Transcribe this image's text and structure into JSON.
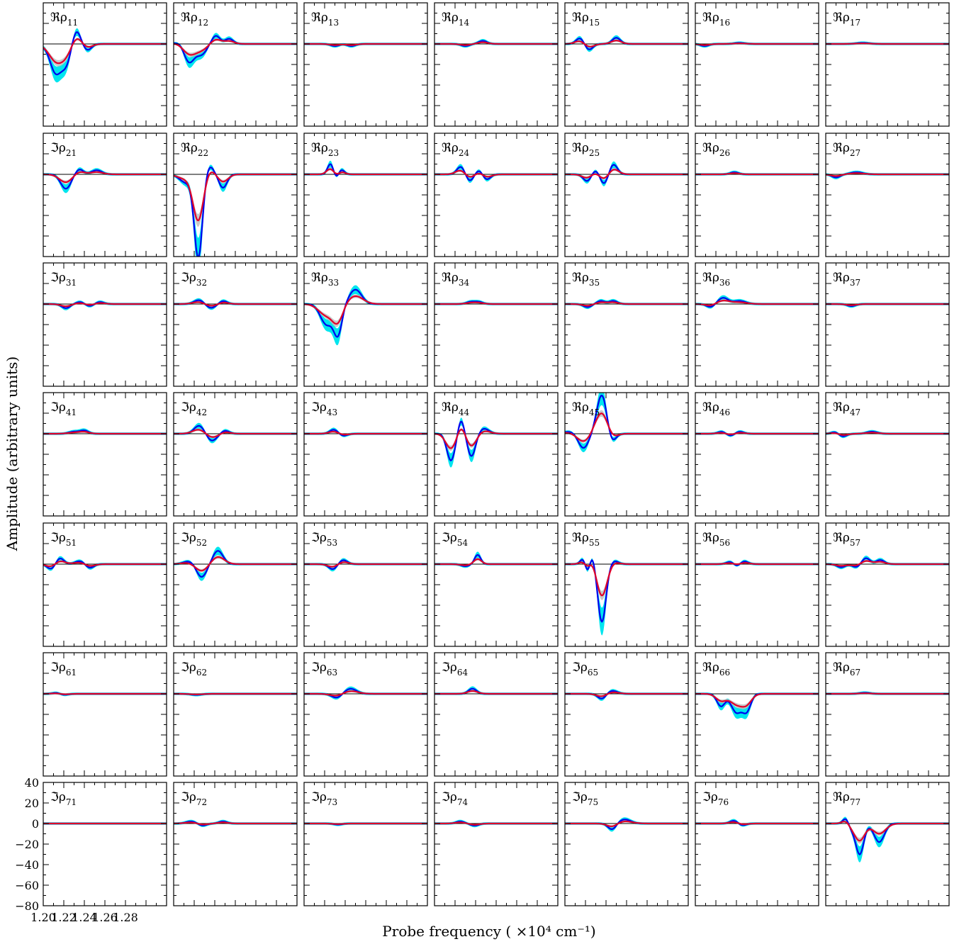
{
  "chart_data": {
    "type": "line",
    "layout": "7x7 grid of small multiples (shared axes)",
    "xlabel": "Probe frequency ( ×10⁴ cm⁻¹)",
    "ylabel": "Amplitude (arbitrary units)",
    "xlim": [
      1.2,
      1.32
    ],
    "ylim": [
      -80,
      40
    ],
    "x_tick_labels": [
      "1.20",
      "1.22",
      "1.24",
      "1.26",
      "1.28"
    ],
    "y_tick_labels": [
      "40",
      "20",
      "0",
      "−20",
      "−40",
      "−60",
      "−80"
    ],
    "colors": {
      "band": "#00e5ee",
      "blue": "#0000ee",
      "red": "#e0002a",
      "grey": "#c0c0c0",
      "zero": "#000000"
    },
    "panels": [
      {
        "row": 1,
        "col": 1,
        "label": "ℜρ",
        "sub": "11",
        "features": [
          [
            1.212,
            -25,
            0.005
          ],
          [
            1.222,
            -20,
            0.005
          ],
          [
            1.232,
            14,
            0.004
          ],
          [
            1.243,
            -6,
            0.004
          ],
          [
            1.205,
            -3,
            0.006
          ]
        ]
      },
      {
        "row": 1,
        "col": 2,
        "label": "ℜρ",
        "sub": "12",
        "features": [
          [
            1.215,
            -18,
            0.005
          ],
          [
            1.227,
            -10,
            0.005
          ],
          [
            1.241,
            8,
            0.004
          ],
          [
            1.254,
            5,
            0.004
          ],
          [
            1.207,
            2,
            0.005
          ]
        ]
      },
      {
        "row": 1,
        "col": 3,
        "label": "ℜρ",
        "sub": "13",
        "features": [
          [
            1.23,
            -2,
            0.004
          ],
          [
            1.246,
            -2,
            0.004
          ]
        ]
      },
      {
        "row": 1,
        "col": 4,
        "label": "ℜρ",
        "sub": "14",
        "features": [
          [
            1.23,
            -2,
            0.004
          ],
          [
            1.247,
            3,
            0.004
          ]
        ]
      },
      {
        "row": 1,
        "col": 5,
        "label": "ℜρ",
        "sub": "15",
        "features": [
          [
            1.215,
            6,
            0.004
          ],
          [
            1.223,
            -6,
            0.004
          ],
          [
            1.25,
            6,
            0.004
          ]
        ]
      },
      {
        "row": 1,
        "col": 6,
        "label": "ℜρ",
        "sub": "16",
        "features": [
          [
            1.209,
            -2,
            0.004
          ],
          [
            1.243,
            1,
            0.005
          ]
        ]
      },
      {
        "row": 1,
        "col": 7,
        "label": "ℜρ",
        "sub": "17",
        "features": [
          [
            1.236,
            1,
            0.006
          ]
        ]
      },
      {
        "row": 2,
        "col": 1,
        "label": "ℑρ",
        "sub": "21",
        "features": [
          [
            1.222,
            -14,
            0.005
          ],
          [
            1.235,
            5,
            0.004
          ],
          [
            1.252,
            4,
            0.005
          ]
        ]
      },
      {
        "row": 2,
        "col": 2,
        "label": "ℜρ",
        "sub": "22",
        "features": [
          [
            1.212,
            -8,
            0.006
          ],
          [
            1.224,
            -80,
            0.004
          ],
          [
            1.235,
            8,
            0.004
          ],
          [
            1.248,
            -13,
            0.004
          ]
        ]
      },
      {
        "row": 2,
        "col": 3,
        "label": "ℜρ",
        "sub": "23",
        "features": [
          [
            1.226,
            11,
            0.003
          ],
          [
            1.231,
            -5,
            0.003
          ],
          [
            1.236,
            5,
            0.003
          ]
        ]
      },
      {
        "row": 2,
        "col": 4,
        "label": "ℜρ",
        "sub": "24",
        "features": [
          [
            1.226,
            8,
            0.004
          ],
          [
            1.234,
            -7,
            0.004
          ],
          [
            1.244,
            5,
            0.004
          ],
          [
            1.25,
            -6,
            0.004
          ]
        ]
      },
      {
        "row": 2,
        "col": 5,
        "label": "ℜρ",
        "sub": "25",
        "features": [
          [
            1.222,
            -7,
            0.004
          ],
          [
            1.23,
            5,
            0.004
          ],
          [
            1.238,
            -10,
            0.004
          ],
          [
            1.247,
            10,
            0.004
          ]
        ]
      },
      {
        "row": 2,
        "col": 6,
        "label": "ℜρ",
        "sub": "26",
        "features": [
          [
            1.238,
            2,
            0.004
          ]
        ]
      },
      {
        "row": 2,
        "col": 7,
        "label": "ℜρ",
        "sub": "27",
        "features": [
          [
            1.21,
            -3,
            0.004
          ],
          [
            1.23,
            2,
            0.006
          ]
        ]
      },
      {
        "row": 3,
        "col": 1,
        "label": "ℑρ",
        "sub": "31",
        "features": [
          [
            1.222,
            -4,
            0.004
          ],
          [
            1.236,
            2,
            0.004
          ],
          [
            1.245,
            -2,
            0.004
          ],
          [
            1.255,
            2,
            0.004
          ]
        ]
      },
      {
        "row": 3,
        "col": 2,
        "label": "ℑρ",
        "sub": "32",
        "features": [
          [
            1.225,
            4,
            0.005
          ],
          [
            1.236,
            -4,
            0.005
          ],
          [
            1.248,
            3,
            0.004
          ]
        ]
      },
      {
        "row": 3,
        "col": 3,
        "label": "ℜρ",
        "sub": "33",
        "features": [
          [
            1.222,
            -20,
            0.006
          ],
          [
            1.233,
            -28,
            0.004
          ],
          [
            1.25,
            14,
            0.006
          ]
        ]
      },
      {
        "row": 3,
        "col": 4,
        "label": "ℜρ",
        "sub": "34",
        "features": [
          [
            1.235,
            2,
            0.004
          ],
          [
            1.243,
            2,
            0.004
          ]
        ]
      },
      {
        "row": 3,
        "col": 5,
        "label": "ℜρ",
        "sub": "35",
        "features": [
          [
            1.222,
            -3,
            0.004
          ],
          [
            1.235,
            3,
            0.004
          ],
          [
            1.247,
            3,
            0.004
          ]
        ]
      },
      {
        "row": 3,
        "col": 6,
        "label": "ℜρ",
        "sub": "36",
        "features": [
          [
            1.215,
            -3,
            0.004
          ],
          [
            1.227,
            6,
            0.005
          ],
          [
            1.243,
            3,
            0.006
          ]
        ]
      },
      {
        "row": 3,
        "col": 7,
        "label": "ℜρ",
        "sub": "37",
        "features": [
          [
            1.225,
            -2,
            0.004
          ]
        ]
      },
      {
        "row": 4,
        "col": 1,
        "label": "ℑρ",
        "sub": "41",
        "features": [
          [
            1.23,
            2,
            0.005
          ],
          [
            1.24,
            3,
            0.004
          ]
        ]
      },
      {
        "row": 4,
        "col": 2,
        "label": "ℑρ",
        "sub": "42",
        "features": [
          [
            1.225,
            8,
            0.005
          ],
          [
            1.237,
            -7,
            0.005
          ],
          [
            1.25,
            3,
            0.004
          ]
        ]
      },
      {
        "row": 4,
        "col": 3,
        "label": "ℑρ",
        "sub": "43",
        "features": [
          [
            1.229,
            4,
            0.004
          ],
          [
            1.238,
            -2,
            0.004
          ]
        ]
      },
      {
        "row": 4,
        "col": 4,
        "label": "ℜρ",
        "sub": "44",
        "features": [
          [
            1.216,
            -26,
            0.004
          ],
          [
            1.226,
            14,
            0.003
          ],
          [
            1.236,
            -22,
            0.004
          ],
          [
            1.248,
            5,
            0.005
          ]
        ]
      },
      {
        "row": 4,
        "col": 5,
        "label": "ℜρ",
        "sub": "45",
        "features": [
          [
            1.205,
            2,
            0.006
          ],
          [
            1.218,
            -14,
            0.005
          ],
          [
            1.236,
            38,
            0.005
          ],
          [
            1.245,
            -10,
            0.004
          ]
        ]
      },
      {
        "row": 4,
        "col": 6,
        "label": "ℜρ",
        "sub": "46",
        "features": [
          [
            1.226,
            2,
            0.004
          ],
          [
            1.234,
            -2,
            0.004
          ],
          [
            1.243,
            2,
            0.004
          ]
        ]
      },
      {
        "row": 4,
        "col": 7,
        "label": "ℜρ",
        "sub": "47",
        "features": [
          [
            1.21,
            2,
            0.004
          ],
          [
            1.216,
            -3,
            0.004
          ],
          [
            1.245,
            2,
            0.005
          ]
        ]
      },
      {
        "row": 5,
        "col": 1,
        "label": "ℑρ",
        "sub": "51",
        "features": [
          [
            1.208,
            -5,
            0.004
          ],
          [
            1.216,
            6,
            0.004
          ],
          [
            1.236,
            3,
            0.005
          ],
          [
            1.245,
            -4,
            0.004
          ]
        ]
      },
      {
        "row": 5,
        "col": 2,
        "label": "ℑρ",
        "sub": "52",
        "features": [
          [
            1.216,
            3,
            0.006
          ],
          [
            1.227,
            -13,
            0.005
          ],
          [
            1.243,
            13,
            0.005
          ]
        ]
      },
      {
        "row": 5,
        "col": 3,
        "label": "ℑρ",
        "sub": "53",
        "features": [
          [
            1.228,
            -5,
            0.004
          ],
          [
            1.238,
            4,
            0.004
          ]
        ]
      },
      {
        "row": 5,
        "col": 4,
        "label": "ℑρ",
        "sub": "54",
        "features": [
          [
            1.23,
            -2,
            0.004
          ],
          [
            1.242,
            9,
            0.003
          ]
        ]
      },
      {
        "row": 5,
        "col": 5,
        "label": "ℜρ",
        "sub": "55",
        "features": [
          [
            1.219,
            10,
            0.003
          ],
          [
            1.222,
            -16,
            0.003
          ],
          [
            1.226,
            12,
            0.003
          ],
          [
            1.236,
            -56,
            0.004
          ],
          [
            1.248,
            3,
            0.004
          ]
        ]
      },
      {
        "row": 5,
        "col": 6,
        "label": "ℜρ",
        "sub": "56",
        "features": [
          [
            1.235,
            3,
            0.004
          ],
          [
            1.24,
            -3,
            0.004
          ],
          [
            1.247,
            3,
            0.004
          ]
        ]
      },
      {
        "row": 5,
        "col": 7,
        "label": "ℜρ",
        "sub": "57",
        "features": [
          [
            1.215,
            -3,
            0.004
          ],
          [
            1.23,
            -3,
            0.004
          ],
          [
            1.239,
            6,
            0.004
          ],
          [
            1.253,
            4,
            0.004
          ]
        ]
      },
      {
        "row": 6,
        "col": 1,
        "label": "ℑρ",
        "sub": "61",
        "features": [
          [
            1.213,
            1,
            0.004
          ],
          [
            1.22,
            -1,
            0.004
          ]
        ]
      },
      {
        "row": 6,
        "col": 2,
        "label": "ℑρ",
        "sub": "62",
        "features": [
          [
            1.222,
            -1,
            0.005
          ]
        ]
      },
      {
        "row": 6,
        "col": 3,
        "label": "ℑρ",
        "sub": "63",
        "features": [
          [
            1.232,
            -4,
            0.005
          ],
          [
            1.245,
            5,
            0.006
          ]
        ]
      },
      {
        "row": 6,
        "col": 4,
        "label": "ℑρ",
        "sub": "64",
        "features": [
          [
            1.237,
            5,
            0.004
          ]
        ]
      },
      {
        "row": 6,
        "col": 5,
        "label": "ℑρ",
        "sub": "65",
        "features": [
          [
            1.236,
            -5,
            0.004
          ],
          [
            1.246,
            3,
            0.005
          ]
        ]
      },
      {
        "row": 6,
        "col": 6,
        "label": "ℜρ",
        "sub": "66",
        "features": [
          [
            1.225,
            -12,
            0.004
          ],
          [
            1.24,
            -18,
            0.005
          ],
          [
            1.25,
            -16,
            0.004
          ]
        ]
      },
      {
        "row": 6,
        "col": 7,
        "label": "ℜρ",
        "sub": "67",
        "features": [
          [
            1.238,
            1,
            0.005
          ]
        ]
      },
      {
        "row": 7,
        "col": 1,
        "label": "ℑρ",
        "sub": "71",
        "features": []
      },
      {
        "row": 7,
        "col": 2,
        "label": "ℑρ",
        "sub": "72",
        "features": [
          [
            1.217,
            2,
            0.005
          ],
          [
            1.228,
            -2,
            0.004
          ],
          [
            1.248,
            2,
            0.004
          ]
        ]
      },
      {
        "row": 7,
        "col": 3,
        "label": "ℑρ",
        "sub": "73",
        "features": [
          [
            1.233,
            -1,
            0.004
          ]
        ]
      },
      {
        "row": 7,
        "col": 4,
        "label": "ℑρ",
        "sub": "74",
        "features": [
          [
            1.225,
            2,
            0.004
          ],
          [
            1.239,
            -2,
            0.004
          ]
        ]
      },
      {
        "row": 7,
        "col": 5,
        "label": "ℑρ",
        "sub": "75",
        "features": [
          [
            1.246,
            -6,
            0.004
          ],
          [
            1.258,
            4,
            0.006
          ]
        ]
      },
      {
        "row": 7,
        "col": 6,
        "label": "ℑρ",
        "sub": "76",
        "features": [
          [
            1.238,
            3,
            0.004
          ],
          [
            1.245,
            -2,
            0.004
          ]
        ]
      },
      {
        "row": 7,
        "col": 7,
        "label": "ℜρ",
        "sub": "77",
        "features": [
          [
            1.22,
            6,
            0.003
          ],
          [
            1.224,
            -5,
            0.003
          ],
          [
            1.233,
            -30,
            0.004
          ],
          [
            1.252,
            -18,
            0.005
          ]
        ]
      }
    ]
  }
}
